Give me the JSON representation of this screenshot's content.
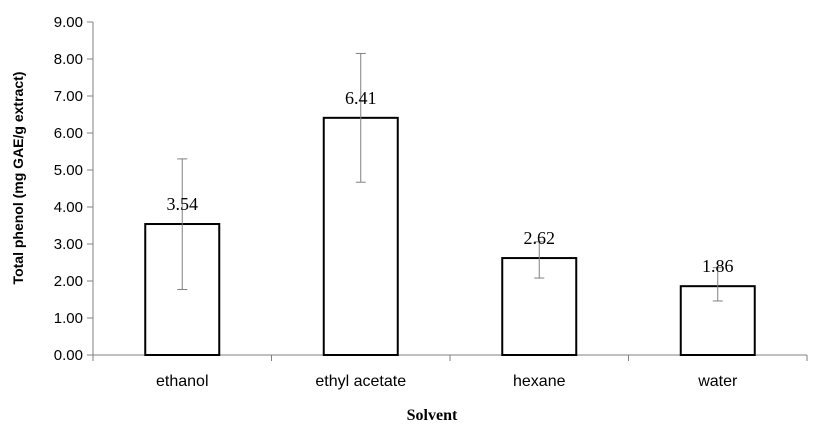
{
  "chart_data": {
    "type": "bar",
    "categories": [
      "ethanol",
      "ethyl acetate",
      "hexane",
      "water"
    ],
    "values": [
      3.54,
      6.41,
      2.62,
      1.86
    ],
    "error_bars": [
      {
        "low": 1.77,
        "high": 5.3
      },
      {
        "low": 4.67,
        "high": 8.15
      },
      {
        "low": 2.08,
        "high": 3.06
      },
      {
        "low": 1.46,
        "high": 2.36
      }
    ],
    "data_labels": [
      "3.54",
      "6.41",
      "2.62",
      "1.86"
    ],
    "title": "",
    "xlabel": "Solvent",
    "ylabel": "Total phenol (mg GAE/g extract)",
    "ylim": [
      0,
      9
    ],
    "y_ticks": [
      "0.00",
      "1.00",
      "2.00",
      "3.00",
      "4.00",
      "5.00",
      "6.00",
      "7.00",
      "8.00",
      "9.00"
    ],
    "grid": false,
    "legend": "none",
    "colors": {
      "bar_fill": "#ffffff",
      "bar_stroke": "#000000",
      "axis": "#808080",
      "error_bar": "#808080"
    }
  }
}
